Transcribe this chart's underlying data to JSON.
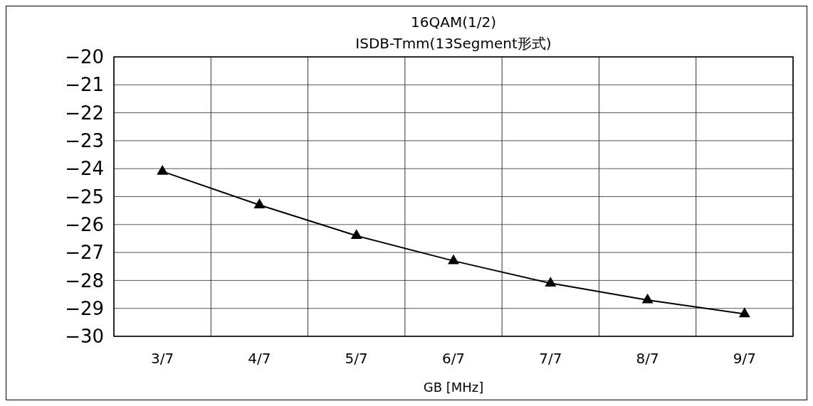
{
  "chart_data": {
    "type": "line",
    "title": "16QAM(1/2)",
    "subtitle": "ISDB-Tmm(13Segment形式)",
    "xlabel": "GB [MHz]",
    "categories": [
      "3/7",
      "4/7",
      "5/7",
      "6/7",
      "7/7",
      "8/7",
      "9/7"
    ],
    "series": [
      {
        "color": "#000000",
        "values": [
          -24.1,
          -25.3,
          -26.4,
          -27.3,
          -28.1,
          -28.7,
          -29.2
        ]
      }
    ],
    "ylim": [
      -30,
      -20
    ],
    "yticks": [
      -20,
      -21,
      -22,
      -23,
      -24,
      -25,
      -26,
      -27,
      -28,
      -29,
      -30
    ],
    "grid": true,
    "marker": "triangle",
    "line_style": "solid"
  }
}
